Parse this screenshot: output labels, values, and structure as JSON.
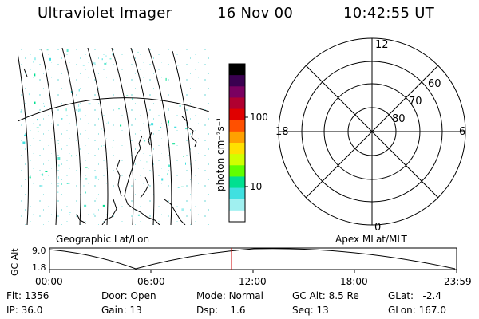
{
  "header": {
    "instrument": "Ultraviolet Imager",
    "date": "16 Nov 00",
    "time": "10:42:55 UT"
  },
  "colorbar": {
    "unit_label": "photon cm⁻²s⁻¹",
    "ticks": [
      "100",
      "10"
    ],
    "colors": [
      "#000000",
      "#3a0050",
      "#7a0060",
      "#b00030",
      "#e00000",
      "#ff5000",
      "#ffa000",
      "#ffe000",
      "#d0ff00",
      "#60ff00",
      "#00e090",
      "#40e0e0",
      "#a0f0f0",
      "#ffffff"
    ]
  },
  "polar_plot": {
    "lat_labels": [
      "60",
      "70",
      "80"
    ],
    "mlt_labels": [
      "12",
      "18",
      "6",
      "0"
    ]
  },
  "map_caption": "Geographic Lat/Lon",
  "polar_caption": "Apex MLat/MLT",
  "orbit": {
    "y_axis_label": "GC Alt",
    "y_ticks": [
      "9.0",
      "1.8"
    ],
    "x_ticks": [
      "00:00",
      "06:00",
      "12:00",
      "18:00",
      "23:59"
    ],
    "current_time_fraction": 0.447,
    "marker_color": "#cc0000"
  },
  "info": {
    "flt": {
      "label": "Flt:",
      "value": "1356"
    },
    "door": {
      "label": "Door:",
      "value": "Open"
    },
    "mode": {
      "label": "Mode:",
      "value": "Normal"
    },
    "gc_alt": {
      "label": "GC Alt:",
      "value": "8.5 Re"
    },
    "glat": {
      "label": "GLat:",
      "value": "-2.4"
    },
    "ip": {
      "label": "IP:",
      "value": "36.0"
    },
    "gain": {
      "label": "Gain:",
      "value": "13"
    },
    "dsp": {
      "label": "Dsp:",
      "value": "1.6"
    },
    "seq": {
      "label": "Seq:",
      "value": "13"
    },
    "glon": {
      "label": "GLon:",
      "value": "167.0"
    }
  }
}
